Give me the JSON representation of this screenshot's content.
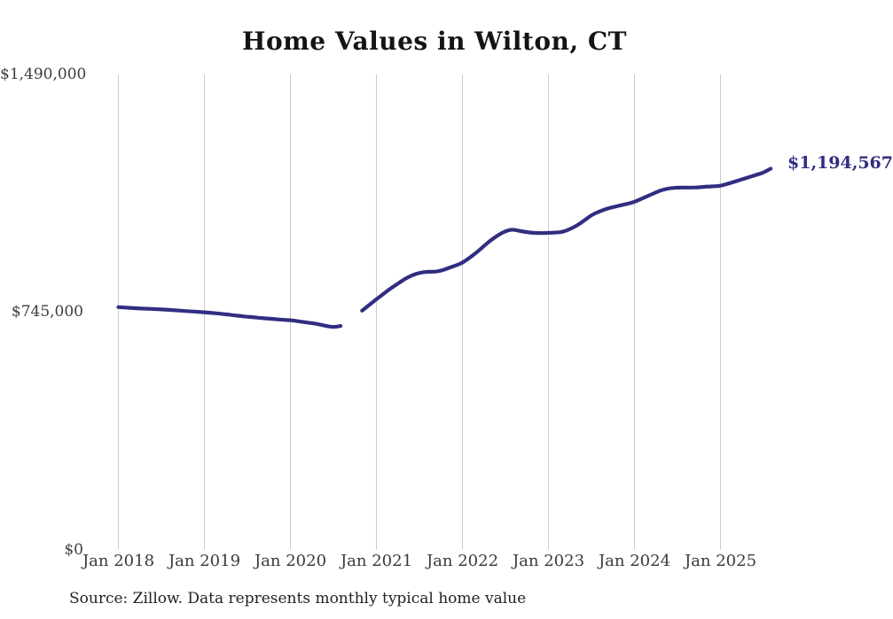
{
  "title": "Home Values in Wilton, CT",
  "source_note": "Source: Zillow. Data represents monthly typical home value",
  "colors": {
    "line": "#312e81",
    "grid": "#cbcbcb",
    "axis_text": "#3a3a3a",
    "title_text": "#141414",
    "background": "#ffffff"
  },
  "chart_data": {
    "type": "line",
    "title": "Home Values in Wilton, CT",
    "xlabel": "",
    "ylabel": "",
    "unit": "USD",
    "ylim": [
      0,
      1490000
    ],
    "grid": "vertical-only",
    "legend": "none",
    "end_label": "$1,194,567",
    "end_value": 1194567,
    "y_ticks": [
      {
        "value": 1490000,
        "label": "$1,490,000"
      },
      {
        "value": 745000,
        "label": "$745,000"
      },
      {
        "value": 0,
        "label": "$0"
      }
    ],
    "x_ticks": [
      {
        "index": 0,
        "label": "Jan 2018"
      },
      {
        "index": 12,
        "label": "Jan 2019"
      },
      {
        "index": 24,
        "label": "Jan 2020"
      },
      {
        "index": 36,
        "label": "Jan 2021"
      },
      {
        "index": 48,
        "label": "Jan 2022"
      },
      {
        "index": 60,
        "label": "Jan 2023"
      },
      {
        "index": 72,
        "label": "Jan 2024"
      },
      {
        "index": 84,
        "label": "Jan 2025"
      }
    ],
    "gap_months": [
      "2020-09",
      "2020-10"
    ],
    "series": [
      {
        "name": "Monthly typical home value",
        "start_month": "2018-01",
        "values": [
          760000,
          758500,
          757000,
          756000,
          755000,
          754000,
          753000,
          751500,
          750000,
          748500,
          747000,
          745500,
          744000,
          742000,
          740000,
          737500,
          735000,
          732500,
          730000,
          728000,
          726000,
          724000,
          722000,
          720500,
          719000,
          716000,
          713000,
          710000,
          706000,
          701000,
          697000,
          701000,
          null,
          null,
          749000,
          767000,
          785000,
          802000,
          819000,
          834000,
          849000,
          860000,
          868000,
          871000,
          871000,
          874000,
          882000,
          890000,
          899000,
          915000,
          932000,
          952000,
          971000,
          986000,
          999000,
          1004000,
          999000,
          995000,
          993000,
          992000,
          993000,
          994000,
          996000,
          1005000,
          1016000,
          1032000,
          1049000,
          1059000,
          1068000,
          1074000,
          1079000,
          1084000,
          1090000,
          1100000,
          1110000,
          1120000,
          1129000,
          1133000,
          1135000,
          1135000,
          1135000,
          1136000,
          1138000,
          1139000,
          1140000,
          1147000,
          1154000,
          1161000,
          1168000,
          1175000,
          1182000,
          1194567
        ]
      }
    ]
  }
}
